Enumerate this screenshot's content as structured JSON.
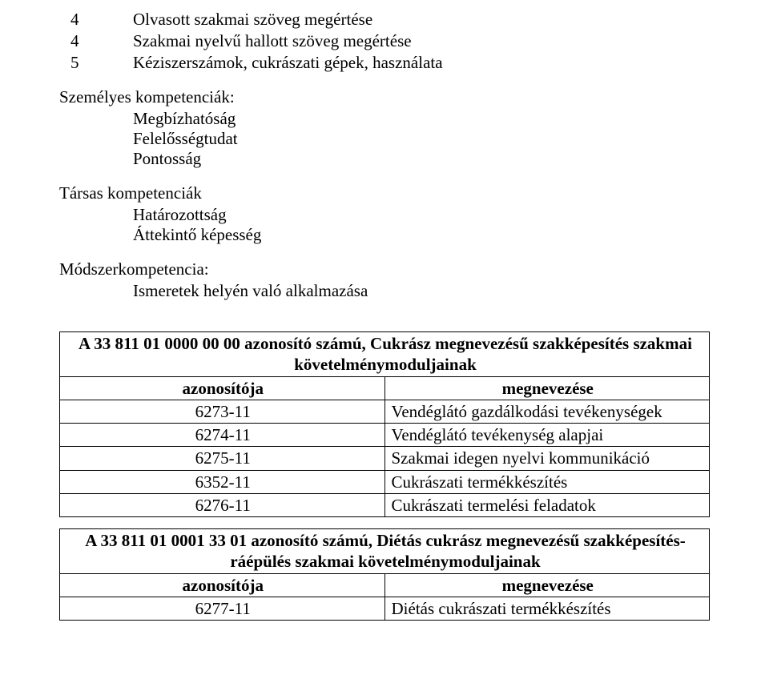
{
  "top_list": [
    {
      "num": "4",
      "text": "Olvasott szakmai szöveg megértése"
    },
    {
      "num": "4",
      "text": "Szakmai nyelvű hallott szöveg megértése"
    },
    {
      "num": "5",
      "text": "Kéziszerszámok, cukrászati gépek, használata"
    }
  ],
  "section1": {
    "heading": "Személyes kompetenciák:",
    "items": [
      "Megbízhatóság",
      "Felelősségtudat",
      "Pontosság"
    ]
  },
  "section2": {
    "heading": "Társas kompetenciák",
    "items": [
      "Határozottság",
      "Áttekintő képesség"
    ]
  },
  "section3": {
    "heading": "Módszerkompetencia:",
    "items": [
      "Ismeretek helyén való alkalmazása"
    ]
  },
  "table1": {
    "title_line1": "A 33 811 01 0000 00 00 azonosító számú, Cukrász megnevezésű szakképesítés szakmai",
    "title_line2": "követelménymoduljainak",
    "col_id_header": "azonosítója",
    "col_name_header": "megnevezése",
    "rows": [
      {
        "id": "6273-11",
        "name": "Vendéglátó gazdálkodási tevékenységek"
      },
      {
        "id": "6274-11",
        "name": "Vendéglátó tevékenység alapjai"
      },
      {
        "id": "6275-11",
        "name": "Szakmai idegen nyelvi kommunikáció"
      },
      {
        "id": "6352-11",
        "name": "Cukrászati termékkészítés"
      },
      {
        "id": "6276-11",
        "name": "Cukrászati termelési feladatok"
      }
    ]
  },
  "table2": {
    "title_line1": "A 33 811 01 0001 33 01 azonosító számú, Diétás cukrász megnevezésű szakképesítés-",
    "title_line2": "ráépülés szakmai követelménymoduljainak",
    "col_id_header": "azonosítója",
    "col_name_header": "megnevezése",
    "rows": [
      {
        "id": "6277-11",
        "name": "Diétás cukrászati termékkészítés"
      }
    ]
  }
}
